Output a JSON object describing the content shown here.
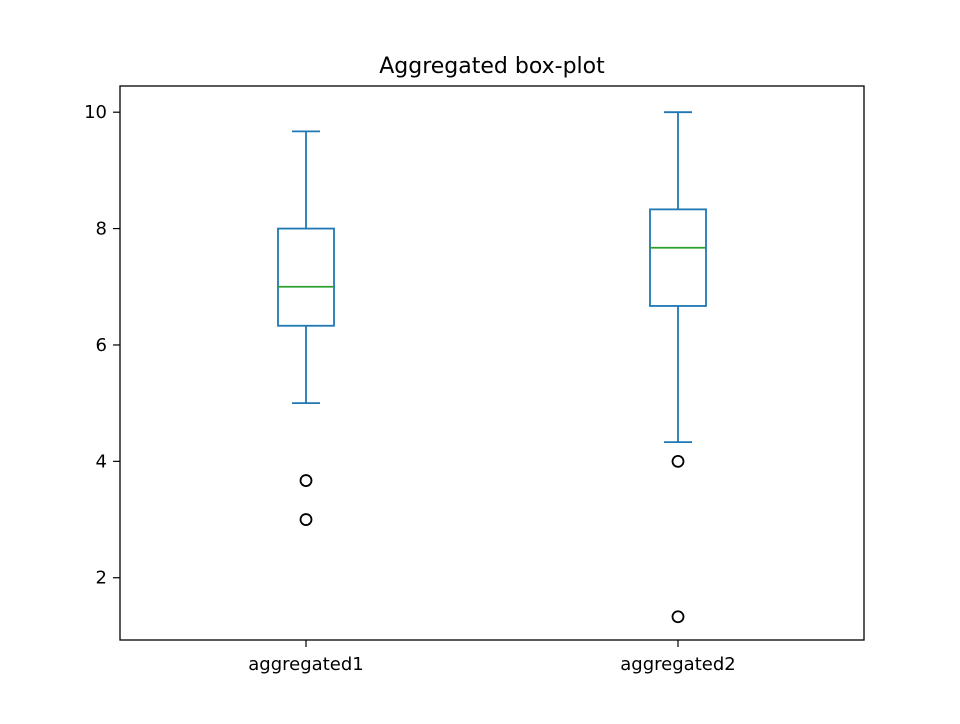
{
  "chart_data": {
    "type": "box",
    "title": "Aggregated box-plot",
    "xlabel": "",
    "ylabel": "",
    "ylim": [
      0.93,
      10.45
    ],
    "yticks": [
      2,
      4,
      6,
      8,
      10
    ],
    "categories": [
      "aggregated1",
      "aggregated2"
    ],
    "boxes": [
      {
        "label": "aggregated1",
        "whisker_low": 5.0,
        "q1": 6.33,
        "median": 7.0,
        "q3": 8.0,
        "whisker_high": 9.67,
        "outliers": [
          3.67,
          3.0
        ]
      },
      {
        "label": "aggregated2",
        "whisker_low": 4.33,
        "q1": 6.67,
        "median": 7.67,
        "q3": 8.33,
        "whisker_high": 10.0,
        "outliers": [
          4.0,
          1.33
        ]
      }
    ],
    "grid": false,
    "legend": "none",
    "colors": {
      "box": "#1f77b4",
      "median": "#2ca02c",
      "outlier": "#000000",
      "axes": "#000000"
    }
  }
}
